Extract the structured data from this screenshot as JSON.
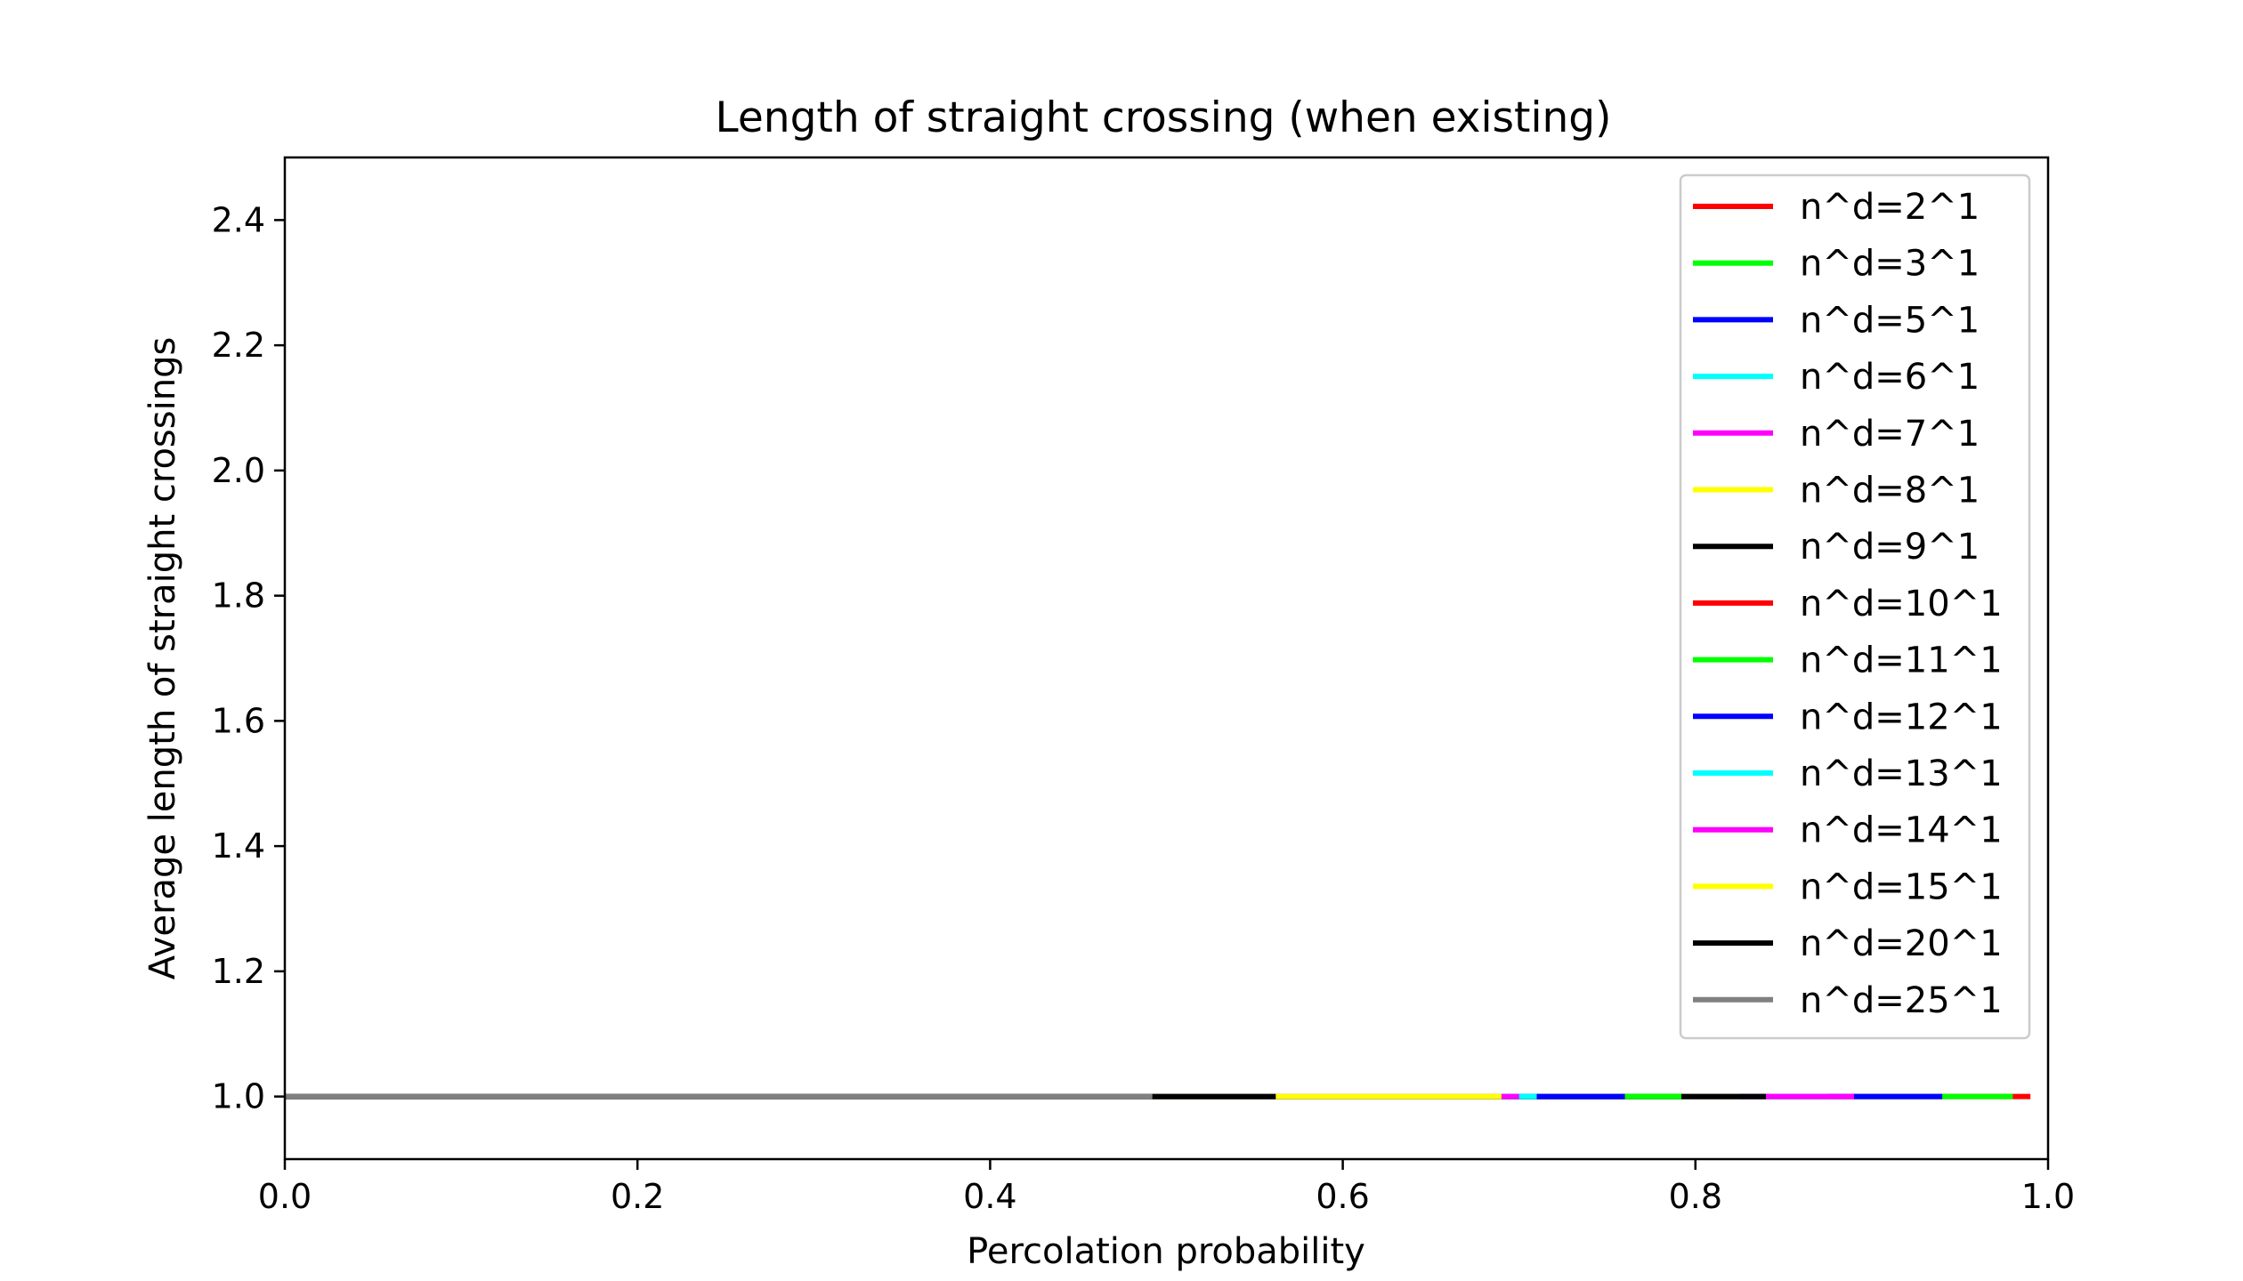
{
  "chart_data": {
    "type": "line",
    "title": "Length of straight crossing (when existing)",
    "xlabel": "Percolation probability",
    "ylabel": "Average length of straight crossings",
    "xlim": [
      0.0,
      1.0
    ],
    "ylim": [
      0.9,
      2.5
    ],
    "xticks": [
      "0.0",
      "0.2",
      "0.4",
      "0.6",
      "0.8",
      "1.0"
    ],
    "xtick_values": [
      0.0,
      0.2,
      0.4,
      0.6,
      0.8,
      1.0
    ],
    "yticks": [
      "1.0",
      "1.2",
      "1.4",
      "1.6",
      "1.8",
      "2.0",
      "2.2",
      "2.4"
    ],
    "ytick_values": [
      1.0,
      1.2,
      1.4,
      1.6,
      1.8,
      2.0,
      2.2,
      2.4
    ],
    "grid": false,
    "legend_position": "upper right",
    "series": [
      {
        "name": "n^d=2^1",
        "color": "#ff0000",
        "x": [
          0.0,
          0.99
        ],
        "y": [
          1.0,
          1.0
        ]
      },
      {
        "name": "n^d=3^1",
        "color": "#00ff00",
        "x": [
          0.0,
          0.98
        ],
        "y": [
          1.0,
          1.0
        ]
      },
      {
        "name": "n^d=5^1",
        "color": "#0000ff",
        "x": [
          0.0,
          0.94
        ],
        "y": [
          1.0,
          1.0
        ]
      },
      {
        "name": "n^d=6^1",
        "color": "#00ffff",
        "x": [
          0.0,
          0.875
        ],
        "y": [
          1.0,
          1.0
        ]
      },
      {
        "name": "n^d=7^1",
        "color": "#ff00ff",
        "x": [
          0.0,
          0.89
        ],
        "y": [
          1.0,
          1.0
        ]
      },
      {
        "name": "n^d=8^1",
        "color": "#ffff00",
        "x": [
          0.0,
          0.825
        ],
        "y": [
          1.0,
          1.0
        ]
      },
      {
        "name": "n^d=9^1",
        "color": "#000000",
        "x": [
          0.0,
          0.84
        ],
        "y": [
          1.0,
          1.0
        ]
      },
      {
        "name": "n^d=10^1",
        "color": "#ff0000",
        "x": [
          0.0,
          0.765
        ],
        "y": [
          1.0,
          1.0
        ]
      },
      {
        "name": "n^d=11^1",
        "color": "#00ff00",
        "x": [
          0.0,
          0.792
        ],
        "y": [
          1.0,
          1.0
        ]
      },
      {
        "name": "n^d=12^1",
        "color": "#0000ff",
        "x": [
          0.0,
          0.76
        ],
        "y": [
          1.0,
          1.0
        ]
      },
      {
        "name": "n^d=13^1",
        "color": "#00ffff",
        "x": [
          0.0,
          0.71
        ],
        "y": [
          1.0,
          1.0
        ]
      },
      {
        "name": "n^d=14^1",
        "color": "#ff00ff",
        "x": [
          0.0,
          0.7
        ],
        "y": [
          1.0,
          1.0
        ]
      },
      {
        "name": "n^d=15^1",
        "color": "#ffff00",
        "x": [
          0.0,
          0.69
        ],
        "y": [
          1.0,
          1.0
        ]
      },
      {
        "name": "n^d=20^1",
        "color": "#000000",
        "x": [
          0.0,
          0.562
        ],
        "y": [
          1.0,
          1.0
        ]
      },
      {
        "name": "n^d=25^1",
        "color": "#808080",
        "x": [
          0.0,
          0.492
        ],
        "y": [
          1.0,
          1.0
        ]
      }
    ]
  }
}
